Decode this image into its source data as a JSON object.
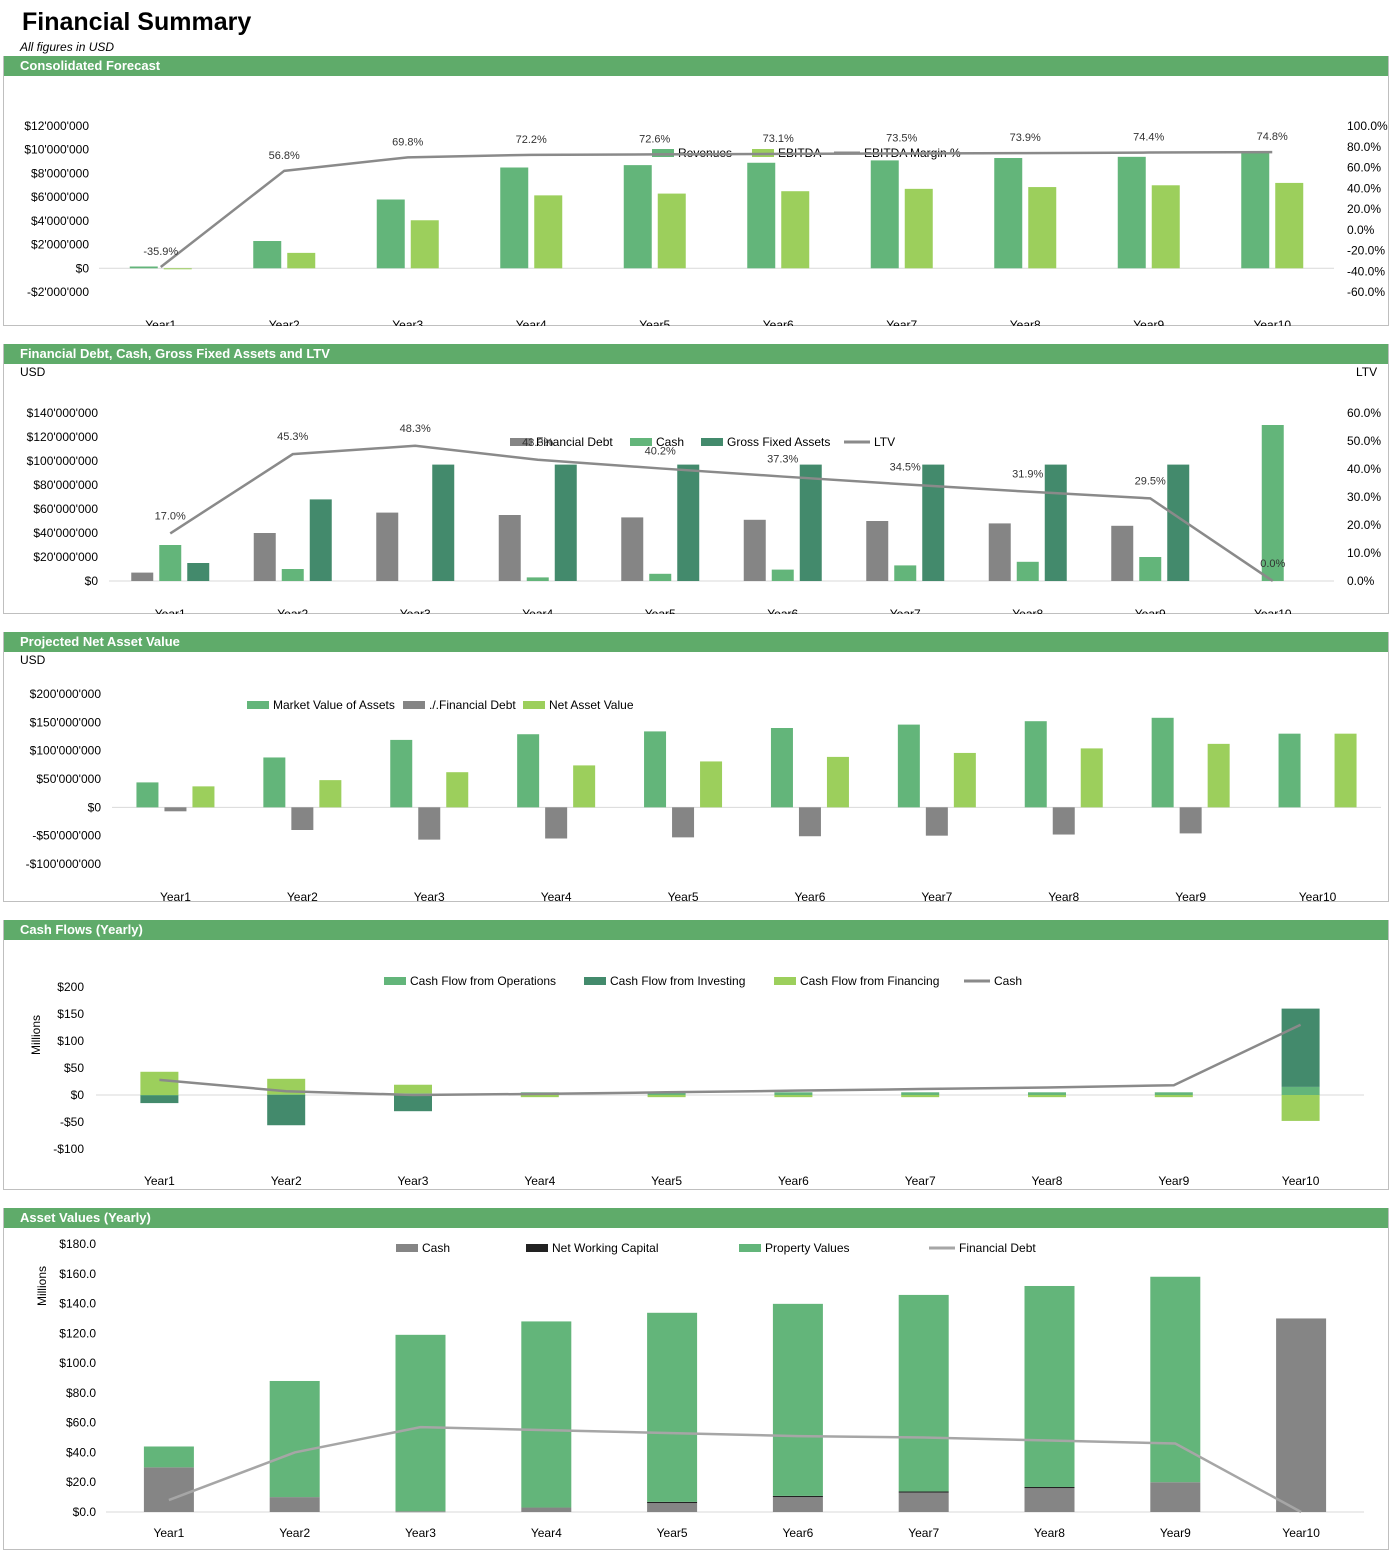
{
  "page": {
    "title": "Financial Summary",
    "subtitle": "All figures in USD"
  },
  "colors": {
    "header": "#5fab6a",
    "green": "#63b57a",
    "light_green": "#9ccf5c",
    "dark_green": "#438a6c",
    "grey": "#858585",
    "line": "#8a8a8a",
    "black": "#222222"
  },
  "chart_data": [
    {
      "id": "c1",
      "type": "bar",
      "section_title": "Consolidated Forecast",
      "categories": [
        "Year1",
        "Year2",
        "Year3",
        "Year4",
        "Year5",
        "Year6",
        "Year7",
        "Year8",
        "Year9",
        "Year10"
      ],
      "series": [
        {
          "name": "Revenues",
          "type": "bar",
          "color": "#63b57a",
          "values": [
            150000,
            2300000,
            5800000,
            8500000,
            8700000,
            8900000,
            9100000,
            9300000,
            9400000,
            9800000
          ]
        },
        {
          "name": "EBITDA",
          "type": "bar",
          "color": "#9ccf5c",
          "values": [
            -54000,
            1300000,
            4050000,
            6150000,
            6300000,
            6500000,
            6700000,
            6850000,
            7000000,
            7200000
          ]
        },
        {
          "name": "EBITDA Margin %",
          "type": "line",
          "axis": "right",
          "color": "#8a8a8a",
          "values": [
            -35.9,
            56.8,
            69.8,
            72.2,
            72.6,
            73.1,
            73.5,
            73.9,
            74.4,
            74.8
          ],
          "labels": [
            "-35.9%",
            "56.8%",
            "69.8%",
            "72.2%",
            "72.6%",
            "73.1%",
            "73.5%",
            "73.9%",
            "74.4%",
            "74.8%"
          ]
        }
      ],
      "ylim": [
        -2000000,
        12000000
      ],
      "y_ticks": [
        {
          "v": 12000000,
          "t": "$12'000'000"
        },
        {
          "v": 10000000,
          "t": "$10'000'000"
        },
        {
          "v": 8000000,
          "t": "$8'000'000"
        },
        {
          "v": 6000000,
          "t": "$6'000'000"
        },
        {
          "v": 4000000,
          "t": "$4'000'000"
        },
        {
          "v": 2000000,
          "t": "$2'000'000"
        },
        {
          "v": 0,
          "t": "$0"
        },
        {
          "v": -2000000,
          "t": "-$2'000'000"
        }
      ],
      "y2lim": [
        -60,
        100
      ],
      "y2_ticks": [
        {
          "v": 100,
          "t": "100.0%"
        },
        {
          "v": 80,
          "t": "80.0%"
        },
        {
          "v": 60,
          "t": "60.0%"
        },
        {
          "v": 40,
          "t": "40.0%"
        },
        {
          "v": 20,
          "t": "20.0%"
        },
        {
          "v": 0,
          "t": "0.0%"
        },
        {
          "v": -20,
          "t": "-20.0%"
        },
        {
          "v": -40,
          "t": "-40.0%"
        },
        {
          "v": -60,
          "t": "-60.0%"
        }
      ],
      "ylabel": "",
      "y2label": ""
    },
    {
      "id": "c2",
      "type": "bar",
      "section_title": "Financial Debt, Cash, Gross Fixed Assets and LTV",
      "categories": [
        "Year1",
        "Year2",
        "Year3",
        "Year4",
        "Year5",
        "Year6",
        "Year7",
        "Year8",
        "Year9",
        "Year10"
      ],
      "series": [
        {
          "name": "Financial Debt",
          "type": "bar",
          "color": "#858585",
          "values": [
            7000000,
            40000000,
            57000000,
            55000000,
            53000000,
            51000000,
            50000000,
            48000000,
            46000000,
            0
          ]
        },
        {
          "name": "Cash",
          "type": "bar",
          "color": "#63b57a",
          "values": [
            30000000,
            10000000,
            0,
            3000000,
            6000000,
            9500000,
            13000000,
            16000000,
            20000000,
            130000000
          ]
        },
        {
          "name": "Gross Fixed Assets",
          "type": "bar",
          "color": "#438a6c",
          "values": [
            15000000,
            68000000,
            97000000,
            97000000,
            97000000,
            97000000,
            97000000,
            97000000,
            97000000,
            0
          ]
        },
        {
          "name": "LTV",
          "type": "line",
          "axis": "right",
          "color": "#8a8a8a",
          "values": [
            17.0,
            45.3,
            48.3,
            43.3,
            40.2,
            37.3,
            34.5,
            31.9,
            29.5,
            0.0
          ],
          "labels": [
            "17.0%",
            "45.3%",
            "48.3%",
            "43.3%",
            "40.2%",
            "37.3%",
            "34.5%",
            "31.9%",
            "29.5%",
            "0.0%"
          ]
        }
      ],
      "ylim": [
        0,
        140000000
      ],
      "y_ticks": [
        {
          "v": 140000000,
          "t": "$140'000'000"
        },
        {
          "v": 120000000,
          "t": "$120'000'000"
        },
        {
          "v": 100000000,
          "t": "$100'000'000"
        },
        {
          "v": 80000000,
          "t": "$80'000'000"
        },
        {
          "v": 60000000,
          "t": "$60'000'000"
        },
        {
          "v": 40000000,
          "t": "$40'000'000"
        },
        {
          "v": 20000000,
          "t": "$20'000'000"
        },
        {
          "v": 0,
          "t": "$0"
        }
      ],
      "y2lim": [
        0,
        60
      ],
      "y2_ticks": [
        {
          "v": 60,
          "t": "60.0%"
        },
        {
          "v": 50,
          "t": "50.0%"
        },
        {
          "v": 40,
          "t": "40.0%"
        },
        {
          "v": 30,
          "t": "30.0%"
        },
        {
          "v": 20,
          "t": "20.0%"
        },
        {
          "v": 10,
          "t": "10.0%"
        },
        {
          "v": 0,
          "t": "0.0%"
        }
      ],
      "ylabel": "USD",
      "y2label": "LTV"
    },
    {
      "id": "c3",
      "type": "bar",
      "section_title": "Projected Net Asset Value",
      "categories": [
        "Year1",
        "Year2",
        "Year3",
        "Year4",
        "Year5",
        "Year6",
        "Year7",
        "Year8",
        "Year9",
        "Year10"
      ],
      "series": [
        {
          "name": "Market Value of Assets",
          "type": "bar",
          "color": "#63b57a",
          "values": [
            44000000,
            88000000,
            119000000,
            129000000,
            134000000,
            140000000,
            146000000,
            152000000,
            158000000,
            130000000
          ]
        },
        {
          "name": "./.Financial Debt",
          "type": "bar",
          "color": "#858585",
          "values": [
            -7000000,
            -40000000,
            -57000000,
            -55000000,
            -53000000,
            -51000000,
            -50000000,
            -48000000,
            -46000000,
            0
          ]
        },
        {
          "name": "Net Asset Value",
          "type": "bar",
          "color": "#9ccf5c",
          "values": [
            37000000,
            48000000,
            62000000,
            74000000,
            81000000,
            89000000,
            96000000,
            104000000,
            112000000,
            130000000
          ]
        }
      ],
      "ylim": [
        -100000000,
        200000000
      ],
      "y_ticks": [
        {
          "v": 200000000,
          "t": "$200'000'000"
        },
        {
          "v": 150000000,
          "t": "$150'000'000"
        },
        {
          "v": 100000000,
          "t": "$100'000'000"
        },
        {
          "v": 50000000,
          "t": "$50'000'000"
        },
        {
          "v": 0,
          "t": "$0"
        },
        {
          "v": -50000000,
          "t": "-$50'000'000"
        },
        {
          "v": -100000000,
          "t": "-$100'000'000"
        }
      ],
      "ylabel": "USD",
      "y2label": ""
    },
    {
      "id": "c4",
      "type": "bar",
      "section_title": "Cash Flows (Yearly)",
      "categories": [
        "Year1",
        "Year2",
        "Year3",
        "Year4",
        "Year5",
        "Year6",
        "Year7",
        "Year8",
        "Year9",
        "Year10"
      ],
      "series": [
        {
          "name": "Cash Flow from Operations",
          "type": "stack",
          "color": "#63b57a",
          "values": [
            -1,
            1,
            3,
            5,
            5,
            5,
            5,
            5,
            5,
            15
          ]
        },
        {
          "name": "Cash Flow from Investing",
          "type": "stack",
          "color": "#438a6c",
          "values": [
            -14,
            -56,
            -30,
            0,
            0,
            0,
            0,
            0,
            0,
            145
          ]
        },
        {
          "name": "Cash Flow from Financing",
          "type": "stack",
          "color": "#9ccf5c",
          "values": [
            43,
            29,
            16,
            -4,
            -4,
            -4,
            -4,
            -4,
            -4,
            -48
          ]
        },
        {
          "name": "Cash",
          "type": "line",
          "color": "#8a8a8a",
          "values": [
            28,
            7,
            0,
            2,
            5,
            8,
            11,
            14,
            18,
            130
          ]
        }
      ],
      "ylim": [
        -100,
        200
      ],
      "y_ticks": [
        {
          "v": 200,
          "t": "$200"
        },
        {
          "v": 150,
          "t": "$150"
        },
        {
          "v": 100,
          "t": "$100"
        },
        {
          "v": 50,
          "t": "$50"
        },
        {
          "v": 0,
          "t": "$0"
        },
        {
          "v": -50,
          "t": "-$50"
        },
        {
          "v": -100,
          "t": "-$100"
        }
      ],
      "ylabel": "Millions",
      "y2label": ""
    },
    {
      "id": "c5",
      "type": "bar",
      "section_title": "Asset Values (Yearly)",
      "categories": [
        "Year1",
        "Year2",
        "Year3",
        "Year4",
        "Year5",
        "Year6",
        "Year7",
        "Year8",
        "Year9",
        "Year10"
      ],
      "series": [
        {
          "name": "Cash",
          "type": "stack",
          "color": "#858585",
          "values": [
            30,
            10,
            0.5,
            3,
            6,
            10,
            13,
            16,
            20,
            130
          ]
        },
        {
          "name": "Net Working Capital",
          "type": "stack",
          "color": "#222222",
          "values": [
            0,
            0,
            0,
            0,
            0.8,
            0.8,
            0.8,
            0.8,
            0,
            0
          ]
        },
        {
          "name": "Property Values",
          "type": "stack",
          "color": "#63b57a",
          "values": [
            14,
            78,
            118.5,
            125,
            127,
            129,
            132,
            135,
            138,
            0
          ]
        },
        {
          "name": "Financial Debt",
          "type": "line",
          "color": "#a6a6a6",
          "values": [
            8,
            40,
            57,
            55,
            53,
            51,
            50,
            48,
            46,
            0
          ]
        }
      ],
      "ylim": [
        0,
        180
      ],
      "y_ticks": [
        {
          "v": 180,
          "t": "$180.0"
        },
        {
          "v": 160,
          "t": "$160.0"
        },
        {
          "v": 140,
          "t": "$140.0"
        },
        {
          "v": 120,
          "t": "$120.0"
        },
        {
          "v": 100,
          "t": "$100.0"
        },
        {
          "v": 80,
          "t": "$80.0"
        },
        {
          "v": 60,
          "t": "$60.0"
        },
        {
          "v": 40,
          "t": "$40.0"
        },
        {
          "v": 20,
          "t": "$20.0"
        },
        {
          "v": 0,
          "t": "$0.0"
        }
      ],
      "ylabel": "Millions",
      "y2label": ""
    }
  ]
}
